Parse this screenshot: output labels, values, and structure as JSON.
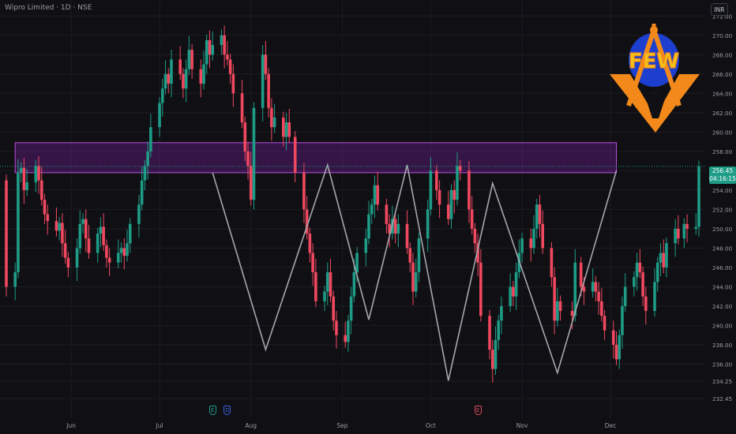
{
  "header": {
    "title": "Wipro Limited · 1D · NSE"
  },
  "currency_button": "INR",
  "price_tag": {
    "price": "256.45",
    "countdown": "04:16:15"
  },
  "events": [
    {
      "letter": "E",
      "color": "#1e9c87",
      "date": "2024-07-19"
    },
    {
      "letter": "D",
      "color": "#3d5fe0",
      "date": "2024-07-24"
    },
    {
      "letter": "E",
      "color": "#e04c5f",
      "date": "2024-10-17"
    }
  ],
  "logo": {
    "text": "FEW",
    "colors": {
      "orange": "#f2891a",
      "blue": "#1d3fd0",
      "yellow": "#f5c21b"
    }
  },
  "colors": {
    "background": "#101014",
    "up": "#1e9c87",
    "down": "#f0485f",
    "zone_fill": "rgba(123,31,162,0.35)",
    "zone_stroke": "#b84fe0",
    "zigzag": "#a5a7ad",
    "grid": "#1c1d22",
    "axis_text": "#9a9ca3"
  },
  "chart_data": {
    "type": "candlestick",
    "title": "Wipro Limited · 1D · NSE",
    "ylim": [
      232.45,
      273
    ],
    "y_ticks": [
      "272.00",
      "270.00",
      "268.00",
      "266.00",
      "264.00",
      "262.00",
      "260.00",
      "258.00",
      "256.00",
      "254.00",
      "252.00",
      "250.00",
      "248.00",
      "246.00",
      "244.00",
      "242.00",
      "240.00",
      "238.00",
      "236.00",
      "234.25",
      "232.45"
    ],
    "x_ticks": [
      {
        "label": "Jun",
        "date": "2024-06-01"
      },
      {
        "label": "Jul",
        "date": "2024-07-01"
      },
      {
        "label": "Aug",
        "date": "2024-08-01"
      },
      {
        "label": "Sep",
        "date": "2024-09-01"
      },
      {
        "label": "Oct",
        "date": "2024-10-01"
      },
      {
        "label": "Nov",
        "date": "2024-11-01"
      },
      {
        "label": "Dec",
        "date": "2024-12-01"
      }
    ],
    "last_price": 256.45,
    "zone": {
      "low": 255.8,
      "high": 258.9,
      "from": "2024-05-13",
      "to": "2024-12-03"
    },
    "zigzag": [
      {
        "date": "2024-07-19",
        "price": 255.8
      },
      {
        "date": "2024-08-06",
        "price": 237.5
      },
      {
        "date": "2024-08-27",
        "price": 256.6
      },
      {
        "date": "2024-09-10",
        "price": 240.6
      },
      {
        "date": "2024-09-23",
        "price": 256.6
      },
      {
        "date": "2024-10-07",
        "price": 234.3
      },
      {
        "date": "2024-10-22",
        "price": 254.7
      },
      {
        "date": "2024-11-13",
        "price": 235.1
      },
      {
        "date": "2024-12-03",
        "price": 256.0
      }
    ],
    "anchor_close": 255.0,
    "closes": [
      [
        "2024-05-10",
        244.0
      ],
      [
        "2024-05-13",
        245.5
      ],
      [
        "2024-05-14",
        255.8
      ],
      [
        "2024-05-15",
        256.3
      ],
      [
        "2024-05-16",
        254.0
      ],
      [
        "2024-05-17",
        254.8
      ],
      [
        "2024-05-20",
        256.5
      ],
      [
        "2024-05-21",
        255.0
      ],
      [
        "2024-05-22",
        253.0
      ],
      [
        "2024-05-23",
        251.5
      ],
      [
        "2024-05-24",
        250.8
      ],
      [
        "2024-05-27",
        249.8
      ],
      [
        "2024-05-28",
        250.6
      ],
      [
        "2024-05-29",
        248.5
      ],
      [
        "2024-05-30",
        247.0
      ],
      [
        "2024-05-31",
        246.0
      ],
      [
        "2024-06-03",
        248.0
      ],
      [
        "2024-06-04",
        250.5
      ],
      [
        "2024-06-05",
        251.0
      ],
      [
        "2024-06-06",
        249.0
      ],
      [
        "2024-06-07",
        247.5
      ],
      [
        "2024-06-10",
        249.5
      ],
      [
        "2024-06-11",
        250.2
      ],
      [
        "2024-06-12",
        248.3
      ],
      [
        "2024-06-13",
        247.0
      ],
      [
        "2024-06-14",
        246.5
      ],
      [
        "2024-06-17",
        247.5
      ],
      [
        "2024-06-18",
        248.0
      ],
      [
        "2024-06-19",
        247.2
      ],
      [
        "2024-06-20",
        248.5
      ],
      [
        "2024-06-21",
        250.5
      ],
      [
        "2024-06-24",
        252.5
      ],
      [
        "2024-06-25",
        255.0
      ],
      [
        "2024-06-26",
        256.5
      ],
      [
        "2024-06-27",
        258.0
      ],
      [
        "2024-06-28",
        260.5
      ],
      [
        "2024-07-01",
        263.0
      ],
      [
        "2024-07-02",
        264.5
      ],
      [
        "2024-07-03",
        266.0
      ],
      [
        "2024-07-04",
        265.0
      ],
      [
        "2024-07-05",
        267.5
      ],
      [
        "2024-07-08",
        266.0
      ],
      [
        "2024-07-09",
        264.5
      ],
      [
        "2024-07-10",
        266.5
      ],
      [
        "2024-07-11",
        268.5
      ],
      [
        "2024-07-12",
        266.5
      ],
      [
        "2024-07-15",
        265.0
      ],
      [
        "2024-07-16",
        267.0
      ],
      [
        "2024-07-17",
        269.5
      ],
      [
        "2024-07-18",
        268.0
      ],
      [
        "2024-07-19",
        269.0
      ],
      [
        "2024-07-22",
        270.0
      ],
      [
        "2024-07-23",
        268.0
      ],
      [
        "2024-07-24",
        267.5
      ],
      [
        "2024-07-25",
        266.0
      ],
      [
        "2024-07-26",
        264.0
      ],
      [
        "2024-07-29",
        261.0
      ],
      [
        "2024-07-30",
        258.0
      ],
      [
        "2024-07-31",
        256.5
      ],
      [
        "2024-08-01",
        253.0
      ],
      [
        "2024-08-02",
        262.5
      ],
      [
        "2024-08-05",
        268.0
      ],
      [
        "2024-08-06",
        266.0
      ],
      [
        "2024-08-07",
        262.5
      ],
      [
        "2024-08-08",
        260.5
      ],
      [
        "2024-08-09",
        261.5
      ],
      [
        "2024-08-12",
        259.5
      ],
      [
        "2024-08-13",
        261.0
      ],
      [
        "2024-08-14",
        259.5
      ],
      [
        "2024-08-16",
        255.8
      ],
      [
        "2024-08-19",
        252.0
      ],
      [
        "2024-08-20",
        249.5
      ],
      [
        "2024-08-21",
        247.5
      ],
      [
        "2024-08-22",
        245.5
      ],
      [
        "2024-08-23",
        242.5
      ],
      [
        "2024-08-26",
        243.5
      ],
      [
        "2024-08-27",
        245.5
      ],
      [
        "2024-08-28",
        243.0
      ],
      [
        "2024-08-29",
        240.5
      ],
      [
        "2024-08-30",
        239.0
      ],
      [
        "2024-09-02",
        238.3
      ],
      [
        "2024-09-03",
        240.5
      ],
      [
        "2024-09-04",
        243.0
      ],
      [
        "2024-09-05",
        245.5
      ],
      [
        "2024-09-06",
        247.5
      ],
      [
        "2024-09-09",
        249.0
      ],
      [
        "2024-09-10",
        251.5
      ],
      [
        "2024-09-11",
        252.5
      ],
      [
        "2024-09-12",
        254.5
      ],
      [
        "2024-09-13",
        252.5
      ],
      [
        "2024-09-16",
        250.5
      ],
      [
        "2024-09-17",
        249.5
      ],
      [
        "2024-09-18",
        251.0
      ],
      [
        "2024-09-19",
        249.5
      ],
      [
        "2024-09-20",
        250.5
      ],
      [
        "2024-09-23",
        248.0
      ],
      [
        "2024-09-24",
        246.5
      ],
      [
        "2024-09-25",
        243.5
      ],
      [
        "2024-09-26",
        245.5
      ],
      [
        "2024-09-27",
        249.0
      ],
      [
        "2024-09-30",
        252.0
      ],
      [
        "2024-10-01",
        256.0
      ],
      [
        "2024-10-03",
        254.0
      ],
      [
        "2024-10-04",
        252.5
      ],
      [
        "2024-10-07",
        251.0
      ],
      [
        "2024-10-08",
        254.0
      ],
      [
        "2024-10-09",
        253.0
      ],
      [
        "2024-10-10",
        256.5
      ],
      [
        "2024-10-11",
        256.0
      ],
      [
        "2024-10-14",
        252.0
      ],
      [
        "2024-10-15",
        250.0
      ],
      [
        "2024-10-16",
        248.5
      ],
      [
        "2024-10-17",
        246.5
      ],
      [
        "2024-10-18",
        241.0
      ],
      [
        "2024-10-21",
        237.5
      ],
      [
        "2024-10-22",
        235.5
      ],
      [
        "2024-10-23",
        238.5
      ],
      [
        "2024-10-24",
        240.5
      ],
      [
        "2024-10-25",
        242.0
      ],
      [
        "2024-10-28",
        244.0
      ],
      [
        "2024-10-29",
        243.0
      ],
      [
        "2024-10-30",
        245.5
      ],
      [
        "2024-10-31",
        247.5
      ],
      [
        "2024-11-01",
        249.0
      ],
      [
        "2024-11-04",
        248.0
      ],
      [
        "2024-11-05",
        250.0
      ],
      [
        "2024-11-06",
        252.5
      ],
      [
        "2024-11-07",
        250.5
      ],
      [
        "2024-11-08",
        248.0
      ],
      [
        "2024-11-11",
        245.0
      ],
      [
        "2024-11-12",
        240.5
      ],
      [
        "2024-11-13",
        242.5
      ],
      [
        "2024-11-14",
        241.5
      ],
      [
        "2024-11-18",
        241.0
      ],
      [
        "2024-11-19",
        246.5
      ],
      [
        "2024-11-21",
        244.0
      ],
      [
        "2024-11-22",
        243.5
      ],
      [
        "2024-11-25",
        244.5
      ],
      [
        "2024-11-26",
        243.5
      ],
      [
        "2024-11-27",
        242.5
      ],
      [
        "2024-11-28",
        241.0
      ],
      [
        "2024-11-29",
        239.5
      ],
      [
        "2024-12-02",
        238.0
      ],
      [
        "2024-12-03",
        236.5
      ],
      [
        "2024-12-04",
        239.0
      ],
      [
        "2024-12-05",
        242.0
      ],
      [
        "2024-12-06",
        244.0
      ],
      [
        "2024-12-09",
        245.0
      ],
      [
        "2024-12-10",
        246.5
      ],
      [
        "2024-12-11",
        245.5
      ],
      [
        "2024-12-12",
        243.0
      ],
      [
        "2024-12-13",
        241.5
      ],
      [
        "2024-12-16",
        244.5
      ],
      [
        "2024-12-17",
        246.5
      ],
      [
        "2024-12-18",
        247.5
      ],
      [
        "2024-12-19",
        246.0
      ],
      [
        "2024-12-20",
        248.5
      ],
      [
        "2024-12-23",
        250.0
      ],
      [
        "2024-12-24",
        249.0
      ],
      [
        "2024-12-26",
        250.5
      ],
      [
        "2024-12-27",
        250.0
      ],
      [
        "2024-12-30",
        250.2
      ],
      [
        "2024-12-31",
        256.45
      ]
    ]
  }
}
